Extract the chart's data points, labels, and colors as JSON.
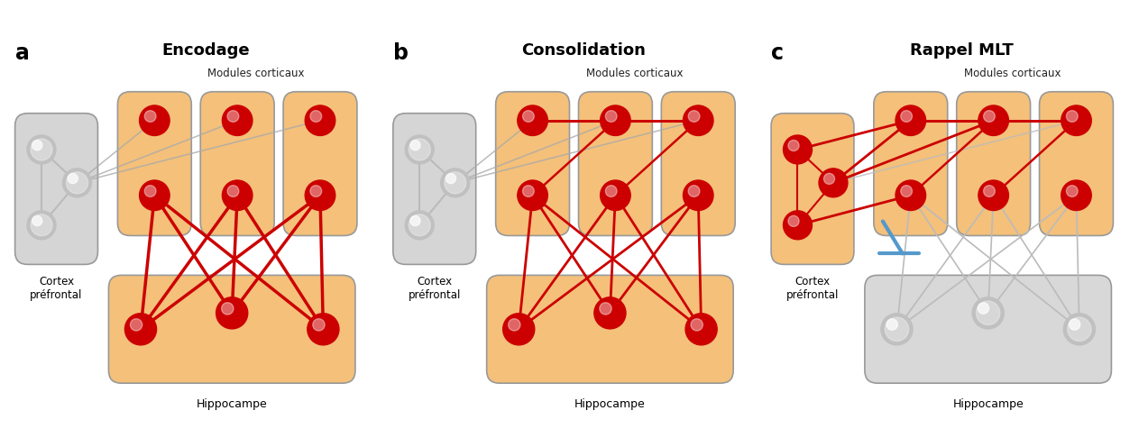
{
  "panels": [
    {
      "label": "a",
      "title": "Encodage",
      "subtitle": "Modules corticaux",
      "bottom_label": "Hippocampe",
      "left_label": "Cortex\npréfrontal",
      "prefrontal_active": false,
      "cortical_active": true,
      "hippocampal_active": true,
      "cortex_internal_connections": false,
      "prefrontal_internal_red": false,
      "show_block_symbol": false,
      "hippo_cortex_lw": 2.5,
      "hippo_line_color": "#cc0000",
      "gray_conn_color": "#aaaaaa"
    },
    {
      "label": "b",
      "title": "Consolidation",
      "subtitle": "Modules corticaux",
      "bottom_label": "Hippocampe",
      "left_label": "Cortex\npréfrontal",
      "prefrontal_active": false,
      "cortical_active": true,
      "hippocampal_active": true,
      "cortex_internal_connections": true,
      "prefrontal_internal_red": false,
      "show_block_symbol": false,
      "hippo_cortex_lw": 2.0,
      "hippo_line_color": "#cc0000",
      "gray_conn_color": "#aaaaaa"
    },
    {
      "label": "c",
      "title": "Rappel MLT",
      "subtitle": "Modules corticaux",
      "bottom_label": "Hippocampe",
      "left_label": "Cortex\npréfrontal",
      "prefrontal_active": true,
      "cortical_active": true,
      "hippocampal_active": false,
      "cortex_internal_connections": true,
      "prefrontal_internal_red": true,
      "show_block_symbol": true,
      "hippo_cortex_lw": 1.2,
      "hippo_line_color": "#bbbbbb",
      "gray_conn_color": "#bbbbbb"
    }
  ],
  "orange_bg": "#f4c07a",
  "orange_bg_light": "#f8d4a0",
  "gray_bg_box": "#c8c8c8",
  "gray_bg_light": "#d8d8d8",
  "red_node": "#cc0000",
  "gray_node": "#c0c0c0",
  "prefrontal_inactive_bg": "#d5d5d5",
  "prefrontal_active_bg": "#f4c07a",
  "red_line": "#cc0000",
  "block_color": "#5599cc"
}
